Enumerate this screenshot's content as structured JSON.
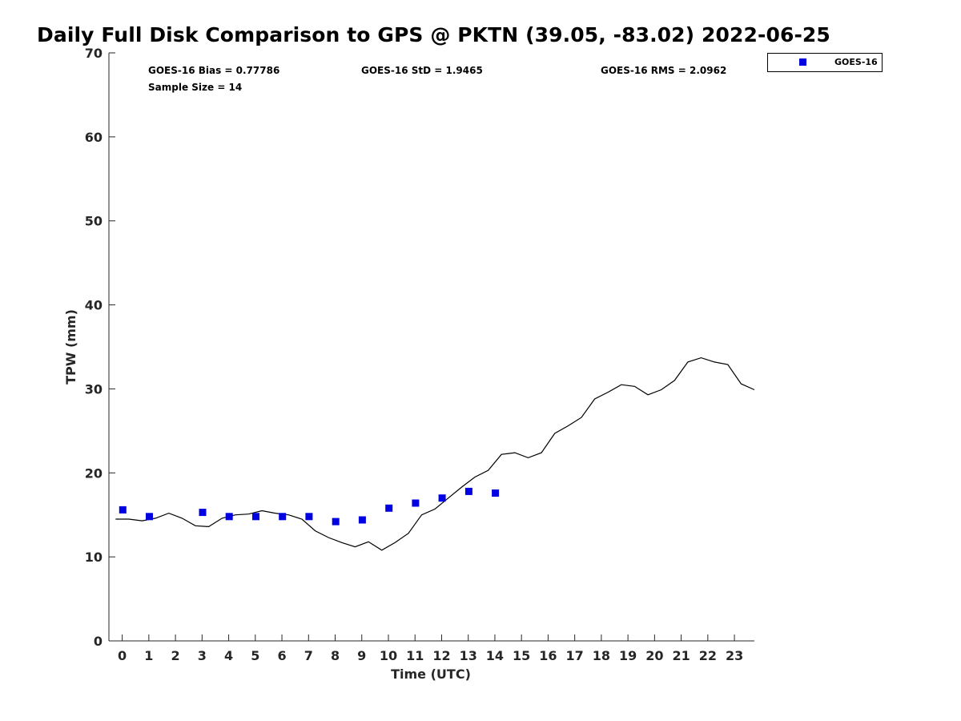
{
  "chart_data": {
    "type": "scatter",
    "title": "Daily Full Disk Comparison to GPS @ PKTN (39.05, -83.02) 2022-06-25",
    "xlabel": "Time (UTC)",
    "ylabel": "TPW (mm)",
    "xlim": [
      -0.5,
      23.75
    ],
    "ylim": [
      0,
      70
    ],
    "x_ticks": [
      0,
      1,
      2,
      3,
      4,
      5,
      6,
      7,
      8,
      9,
      10,
      11,
      12,
      13,
      14,
      15,
      16,
      17,
      18,
      19,
      20,
      21,
      22,
      23
    ],
    "y_ticks": [
      0,
      10,
      20,
      30,
      40,
      50,
      60,
      70
    ],
    "grid": false,
    "legend_position": "top-right, outside plot",
    "stats": {
      "bias": "GOES-16 Bias = 0.77786",
      "std": "GOES-16 StD = 1.9465",
      "rms": "GOES-16 RMS = 2.0962",
      "sample_size": "Sample Size = 14"
    },
    "series": [
      {
        "name": "GOES-16",
        "kind": "markers",
        "marker": "square",
        "color": "#0000e0",
        "x": [
          0.02,
          1.02,
          3.02,
          4.02,
          5.02,
          6.02,
          7.02,
          8.02,
          9.02,
          10.02,
          11.02,
          12.02,
          13.02,
          14.02
        ],
        "y": [
          15.6,
          14.8,
          15.3,
          14.8,
          14.8,
          14.8,
          14.8,
          14.2,
          14.4,
          15.8,
          16.4,
          17.0,
          17.8,
          17.6
        ]
      },
      {
        "kind": "line",
        "color": "#000000",
        "x": [
          -0.25,
          0.25,
          0.75,
          1.25,
          1.75,
          2.25,
          2.75,
          3.25,
          3.75,
          4.25,
          4.75,
          5.25,
          5.75,
          6.25,
          6.75,
          7.25,
          7.75,
          8.25,
          8.75,
          9.25,
          9.75,
          10.25,
          10.75,
          11.25,
          11.75,
          12.25,
          12.75,
          13.25,
          13.75,
          14.25,
          14.75,
          15.25,
          15.75,
          16.25,
          16.75,
          17.25,
          17.75,
          18.25,
          18.75,
          19.25,
          19.75,
          20.25,
          20.75,
          21.25,
          21.75,
          22.25,
          22.75,
          23.25,
          23.75
        ],
        "y": [
          14.5,
          14.5,
          14.3,
          14.6,
          15.2,
          14.6,
          13.7,
          13.6,
          14.6,
          15.0,
          15.1,
          15.5,
          15.2,
          15.0,
          14.5,
          13.1,
          12.3,
          11.7,
          11.2,
          11.8,
          10.8,
          11.7,
          12.8,
          15.0,
          15.7,
          17.0,
          18.3,
          19.5,
          20.3,
          22.2,
          22.4,
          21.8,
          22.4,
          24.7,
          25.6,
          26.6,
          28.8,
          29.6,
          30.5,
          30.3,
          29.3,
          29.9,
          31.0,
          33.2,
          33.7,
          33.2,
          32.9,
          30.6,
          29.9
        ]
      }
    ]
  }
}
